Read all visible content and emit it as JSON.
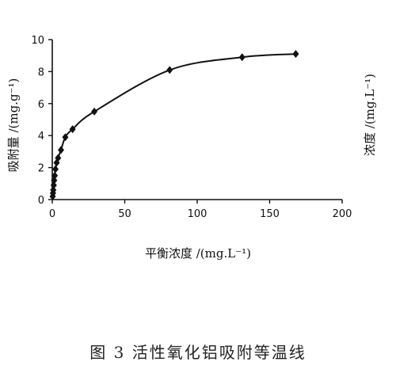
{
  "chart_data": {
    "type": "line",
    "title": "",
    "caption": "图 3   活性氧化铝吸附等温线",
    "xlabel": "平衡浓度 /(mg.L⁻¹)",
    "ylabel": "吸附量 /(mg.g⁻¹)",
    "ylabel_right": "浓度 /(mg.L⁻¹)",
    "xlim": [
      0,
      200
    ],
    "ylim": [
      0,
      10
    ],
    "xticks": [
      0,
      50,
      100,
      150,
      200
    ],
    "yticks": [
      0,
      2,
      4,
      6,
      8,
      10
    ],
    "grid": false,
    "series": [
      {
        "marker": "diamond",
        "color": "#111111",
        "x": [
          0.3,
          0.5,
          0.7,
          1.0,
          1.3,
          1.7,
          2.2,
          3.0,
          4.0,
          6.0,
          9.0,
          14.0,
          29.0,
          81.0,
          131.0,
          168.0
        ],
        "y": [
          0.2,
          0.4,
          0.6,
          0.9,
          1.2,
          1.5,
          1.9,
          2.3,
          2.6,
          3.1,
          3.9,
          4.4,
          5.5,
          8.1,
          8.9,
          9.1
        ]
      }
    ]
  }
}
